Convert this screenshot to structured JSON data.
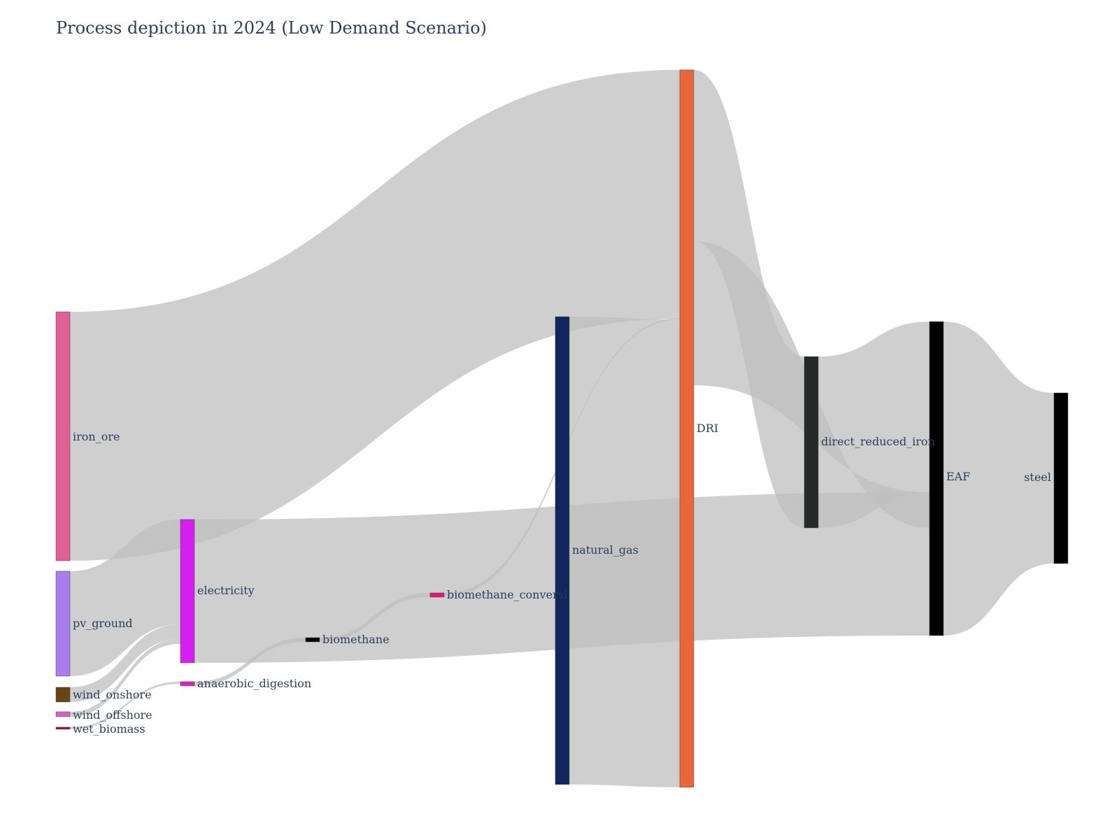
{
  "title": "Process depiction in 2024 (Low Demand Scenario)",
  "nodes": [
    {
      "id": "iron_ore",
      "label": "iron_ore",
      "color": "#e05f96"
    },
    {
      "id": "pv_ground",
      "label": "pv_ground",
      "color": "#a97def"
    },
    {
      "id": "wind_onshore",
      "label": "wind_onshore",
      "color": "#684314"
    },
    {
      "id": "wind_offshore",
      "label": "wind_offshore",
      "color": "#d860c8"
    },
    {
      "id": "wet_biomass",
      "label": "wet_biomass",
      "color": "#9e1040"
    },
    {
      "id": "electricity",
      "label": "electricity",
      "color": "#d51ef0"
    },
    {
      "id": "anaerobic_digestion",
      "label": "anaerobic_digestion",
      "color": "#e31fbf"
    },
    {
      "id": "biomethane",
      "label": "biomethane",
      "color": "#000000"
    },
    {
      "id": "biomethane_conversion",
      "label": "biomethane_conversi",
      "color": "#e3157c"
    },
    {
      "id": "natural_gas",
      "label": "natural_gas",
      "color": "#10265c"
    },
    {
      "id": "DRI",
      "label": "DRI",
      "color": "#e8663a"
    },
    {
      "id": "direct_reduced_iron",
      "label": "direct_reduced_iron",
      "color": "#242b29"
    },
    {
      "id": "EAF",
      "label": "EAF",
      "color": "#000000"
    },
    {
      "id": "steel",
      "label": "steel",
      "color": "#000000"
    }
  ],
  "links": [
    {
      "source": "iron_ore",
      "target": "DRI"
    },
    {
      "source": "pv_ground",
      "target": "electricity"
    },
    {
      "source": "wind_onshore",
      "target": "electricity"
    },
    {
      "source": "wind_offshore",
      "target": "electricity"
    },
    {
      "source": "wet_biomass",
      "target": "anaerobic_digestion"
    },
    {
      "source": "electricity",
      "target": "EAF"
    },
    {
      "source": "anaerobic_digestion",
      "target": "biomethane"
    },
    {
      "source": "biomethane",
      "target": "biomethane_conversion"
    },
    {
      "source": "biomethane_conversion",
      "target": "DRI"
    },
    {
      "source": "natural_gas",
      "target": "DRI"
    },
    {
      "source": "DRI",
      "target": "direct_reduced_iron"
    },
    {
      "source": "DRI",
      "target": "EAF"
    },
    {
      "source": "direct_reduced_iron",
      "target": "EAF"
    },
    {
      "source": "EAF",
      "target": "steel"
    }
  ],
  "colors": {
    "link": "#bfbfbf",
    "text": "#2a3f5f"
  }
}
